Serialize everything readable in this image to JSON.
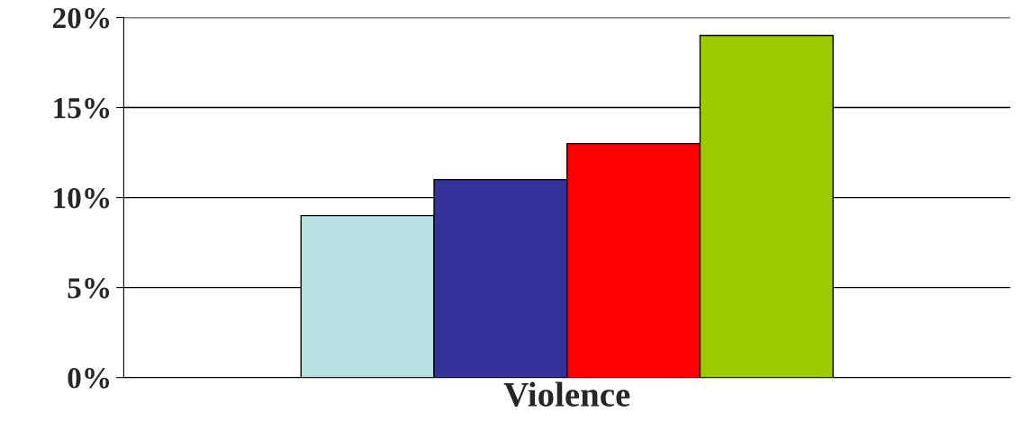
{
  "chart_data": {
    "type": "bar",
    "categories": [
      "Violence"
    ],
    "series": [
      {
        "color": "#b9e0e3",
        "values": [
          9
        ]
      },
      {
        "color": "#353399",
        "values": [
          11
        ]
      },
      {
        "color": "#ff0000",
        "values": [
          13
        ]
      },
      {
        "color": "#9ecb00",
        "values": [
          19
        ]
      }
    ],
    "ylim": [
      0,
      20
    ],
    "yticks": [
      {
        "value": 0,
        "label": "0%"
      },
      {
        "value": 5,
        "label": "5%"
      },
      {
        "value": 10,
        "label": "10%"
      },
      {
        "value": 15,
        "label": "15%"
      },
      {
        "value": 20,
        "label": "20%"
      }
    ],
    "grid": "y",
    "legend": false
  }
}
